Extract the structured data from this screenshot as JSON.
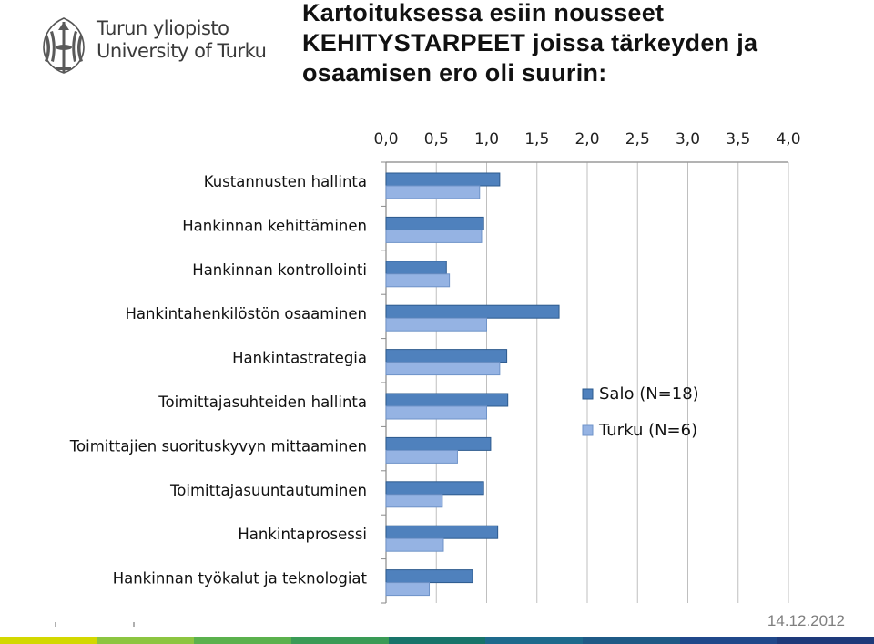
{
  "header": {
    "logo_line1": "Turun yliopisto",
    "logo_line2": "University of Turku",
    "title_line1": "Kartoituksessa esiin nousseet",
    "title_line2": "KEHITYSTARPEET joissa tärkeyden ja",
    "title_line3": "osaamisen ero oli suurin:"
  },
  "footer": {
    "date": "14.12.2012",
    "stripe_colors": [
      "#d3d800",
      "#8cc540",
      "#5bb14d",
      "#3a9b56",
      "#18746a",
      "#1e6a8c",
      "#1f5a86",
      "#20488a",
      "#1e3a7a"
    ]
  },
  "chart_data": {
    "type": "bar",
    "orientation": "horizontal",
    "categories": [
      "Kustannusten hallinta",
      "Hankinnan kehittäminen",
      "Hankinnan kontrollointi",
      "Hankintahenkilöstön osaaminen",
      "Hankintastrategia",
      "Toimittajasuhteiden hallinta",
      "Toimittajien suorituskyvyn mittaaminen",
      "Toimittajasuuntautuminen",
      "Hankintaprosessi",
      "Hankinnan työkalut ja teknologiat"
    ],
    "series": [
      {
        "name": "Salo (N=18)",
        "color": "#4f81bd",
        "values": [
          1.13,
          0.97,
          0.6,
          1.72,
          1.2,
          1.21,
          1.04,
          0.97,
          1.11,
          0.86
        ]
      },
      {
        "name": "Turku (N=6)",
        "color": "#95b3e3",
        "values": [
          0.93,
          0.95,
          0.63,
          1.0,
          1.13,
          1.0,
          0.71,
          0.56,
          0.57,
          0.43
        ]
      }
    ],
    "xlim": [
      0,
      4.0
    ],
    "xticks": [
      "0,0",
      "0,5",
      "1,0",
      "1,5",
      "2,0",
      "2,5",
      "3,0",
      "3,5",
      "4,0"
    ],
    "xaxis_position": "top",
    "grid": true,
    "legend_position": "right"
  }
}
